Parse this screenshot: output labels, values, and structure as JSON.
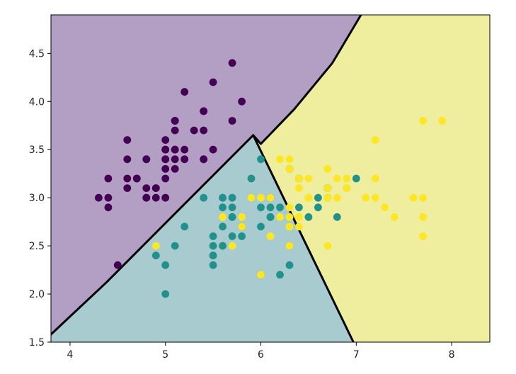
{
  "chart_data": {
    "type": "scatter",
    "title": "",
    "xlabel": "",
    "ylabel": "",
    "xlim": [
      3.8,
      8.4
    ],
    "ylim": [
      1.5,
      4.9
    ],
    "x_ticks": [
      "4",
      "5",
      "6",
      "7",
      "8"
    ],
    "y_ticks": [
      "1.5",
      "2.0",
      "2.5",
      "3.0",
      "3.5",
      "4.0",
      "4.5"
    ],
    "grid": false,
    "legend": "none",
    "regions": [
      {
        "class": 0,
        "color": "#b39fc4",
        "polygon": [
          [
            3.8,
            1.58
          ],
          [
            4.38,
            2.12
          ],
          [
            5.92,
            3.65
          ],
          [
            6.0,
            3.56
          ],
          [
            6.35,
            3.92
          ],
          [
            6.75,
            4.4
          ],
          [
            7.05,
            4.9
          ],
          [
            3.8,
            4.9
          ]
        ]
      },
      {
        "class": 1,
        "color": "#a8cbd0",
        "polygon": [
          [
            3.8,
            1.5
          ],
          [
            6.97,
            1.5
          ],
          [
            5.92,
            3.65
          ],
          [
            4.38,
            2.12
          ],
          [
            3.8,
            1.58
          ]
        ]
      },
      {
        "class": 2,
        "color": "#eeee9e",
        "polygon": [
          [
            6.97,
            1.5
          ],
          [
            8.4,
            1.5
          ],
          [
            8.4,
            4.9
          ],
          [
            7.05,
            4.9
          ],
          [
            6.75,
            4.4
          ],
          [
            6.35,
            3.92
          ],
          [
            6.0,
            3.56
          ],
          [
            5.92,
            3.65
          ]
        ]
      }
    ],
    "boundaries": [
      [
        [
          3.8,
          1.58
        ],
        [
          4.38,
          2.12
        ],
        [
          5.92,
          3.65
        ],
        [
          6.0,
          3.56
        ],
        [
          6.35,
          3.92
        ],
        [
          6.75,
          4.4
        ],
        [
          7.05,
          4.9
        ]
      ],
      [
        [
          5.92,
          3.65
        ],
        [
          6.97,
          1.5
        ]
      ]
    ],
    "series": [
      {
        "class": 0,
        "color": "#440154",
        "x": [
          5.1,
          4.9,
          4.7,
          4.6,
          5.0,
          5.4,
          4.6,
          5.0,
          4.4,
          4.9,
          5.4,
          4.8,
          4.8,
          4.3,
          5.8,
          5.7,
          5.4,
          5.1,
          5.7,
          5.1,
          5.4,
          5.1,
          4.6,
          5.1,
          4.8,
          5.0,
          5.0,
          5.2,
          5.2,
          4.7,
          4.8,
          5.4,
          5.2,
          5.5,
          4.9,
          5.0,
          5.5,
          4.4,
          5.1,
          5.0,
          4.5,
          4.4,
          5.0,
          5.1,
          4.8,
          5.1,
          4.6,
          5.3,
          5.0
        ],
        "y": [
          3.5,
          3.0,
          3.2,
          3.1,
          3.6,
          3.9,
          3.4,
          3.4,
          2.9,
          3.1,
          3.7,
          3.4,
          3.0,
          3.0,
          4.0,
          4.4,
          3.9,
          3.5,
          3.8,
          3.8,
          3.4,
          3.7,
          3.6,
          3.3,
          3.4,
          3.0,
          3.4,
          3.5,
          3.4,
          3.2,
          3.1,
          3.4,
          4.1,
          4.2,
          3.1,
          3.2,
          3.5,
          3.0,
          3.4,
          3.5,
          2.3,
          3.2,
          3.5,
          3.8,
          3.0,
          3.8,
          3.2,
          3.7,
          3.3
        ]
      },
      {
        "class": 1,
        "color": "#21918c",
        "x": [
          7.0,
          6.4,
          6.9,
          5.5,
          6.5,
          5.7,
          6.3,
          4.9,
          6.6,
          5.2,
          5.0,
          5.9,
          6.0,
          6.1,
          5.6,
          6.7,
          5.6,
          5.8,
          6.2,
          5.6,
          5.9,
          6.1,
          6.3,
          6.1,
          6.4,
          6.6,
          6.8,
          6.7,
          6.0,
          5.7,
          5.5,
          5.5,
          5.8,
          6.0,
          5.4,
          6.0,
          6.7,
          6.3,
          5.6,
          5.5,
          5.5,
          6.1,
          5.8,
          5.0,
          5.6,
          5.7,
          5.7,
          6.2,
          5.1,
          5.7
        ],
        "y": [
          3.2,
          3.2,
          3.1,
          2.3,
          2.8,
          2.8,
          3.3,
          2.4,
          2.9,
          2.7,
          2.0,
          3.0,
          2.2,
          2.9,
          2.9,
          3.1,
          3.0,
          2.7,
          2.2,
          2.5,
          3.2,
          2.8,
          2.5,
          2.8,
          2.9,
          3.0,
          2.8,
          3.0,
          2.9,
          2.6,
          2.4,
          2.4,
          2.7,
          2.7,
          3.0,
          3.4,
          3.1,
          2.3,
          3.0,
          2.5,
          2.6,
          3.0,
          2.6,
          2.3,
          2.7,
          3.0,
          2.9,
          2.9,
          2.5,
          2.8
        ]
      },
      {
        "class": 2,
        "color": "#fde725",
        "x": [
          6.3,
          5.8,
          7.1,
          6.3,
          6.5,
          7.6,
          4.9,
          7.3,
          6.7,
          7.2,
          6.5,
          6.4,
          6.8,
          5.7,
          5.8,
          6.4,
          6.5,
          7.7,
          7.7,
          6.0,
          6.9,
          5.6,
          7.7,
          6.3,
          6.7,
          7.2,
          6.2,
          6.1,
          6.4,
          7.2,
          7.4,
          7.9,
          6.4,
          6.3,
          6.1,
          7.7,
          6.3,
          6.4,
          6.0,
          6.9,
          6.7,
          6.9,
          6.8,
          6.7,
          6.7,
          6.3,
          6.5,
          6.2,
          5.9
        ],
        "y": [
          3.3,
          2.7,
          3.0,
          2.9,
          3.0,
          3.0,
          2.5,
          2.9,
          2.5,
          3.6,
          3.2,
          2.7,
          3.0,
          2.5,
          2.8,
          3.2,
          3.0,
          3.8,
          2.6,
          2.2,
          3.2,
          2.8,
          2.8,
          2.7,
          3.3,
          3.2,
          2.8,
          3.0,
          2.8,
          3.0,
          2.8,
          3.8,
          2.8,
          2.8,
          2.6,
          3.0,
          3.4,
          3.1,
          3.0,
          3.1,
          3.1,
          3.1,
          3.2,
          3.3,
          3.0,
          2.5,
          3.0,
          3.4,
          3.0
        ]
      }
    ]
  }
}
